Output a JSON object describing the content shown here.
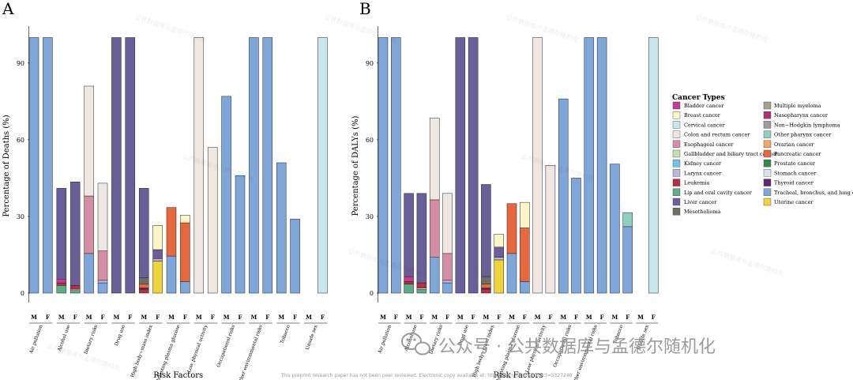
{
  "colors": {
    "Bladder cancer": "#c43c8c",
    "Breast cancer": "#fbf6c8",
    "Cervical cancer": "#c8e8ee",
    "Colon and rectum cancer": "#efe8e2",
    "Esophageal cancer": "#d68ea4",
    "Gallbladder and biliary tract cancer": "#c7dcb0",
    "Kidney cancer": "#73c4e8",
    "Larynx cancer": "#b9b6de",
    "Leukemia": "#b53040",
    "Lip and oral cavity cancer": "#5aae8a",
    "Liver cancer": "#6a5f98",
    "Mesothelioma": "#6e6e66",
    "Multiple myeloma": "#a2a28e",
    "Nasopharynx cancer": "#b0306e",
    "Non-Hodgkin lymphoma": "#a09a9a",
    "Other pharynx cancer": "#8ed0c0",
    "Ovarian cancer": "#f0a860",
    "Pancreatic cancer": "#e8683e",
    "Prostate cancer": "#2e8a52",
    "Stomach cancer": "#d4e6ea",
    "Thyroid cancer": "#5a2a78",
    "Tracheal, bronchus, and lung cancer": "#7ea6d8",
    "Uterine cancer": "#f2d43a"
  },
  "legend": {
    "title": "Cancer Types",
    "col1": [
      "Bladder cancer",
      "Breast cancer",
      "Cervical cancer",
      "Colon and rectum cancer",
      "Esophageal cancer",
      "Gallbladder and biliary tract cancer",
      "Kidney cancer",
      "Larynx cancer",
      "Leukemia",
      "Lip and oral cavity cancer",
      "Liver cancer",
      "Mesothelioma"
    ],
    "col2": [
      "Multiple myeloma",
      "Nasopharynx cancer",
      "Non−Hodgkin lymphoma",
      "Other pharynx cancer",
      "Ovarian cancer",
      "Pancreatic cancer",
      "Prostate cancer",
      "Stomach cancer",
      "Thyroid cancer",
      "Tracheal, bronchus, and lung cancer",
      "Uterine cancer"
    ],
    "col2_keys": [
      "Multiple myeloma",
      "Nasopharynx cancer",
      "Non-Hodgkin lymphoma",
      "Other pharynx cancer",
      "Ovarian cancer",
      "Pancreatic cancer",
      "Prostate cancer",
      "Stomach cancer",
      "Thyroid cancer",
      "Tracheal, bronchus, and lung cancer",
      "Uterine cancer"
    ]
  },
  "footnote": "This preprint research paper has not been peer reviewed. Electronic copy available at: https://ssrn.com/abstract=5327240",
  "watermark": {
    "main": "公众号 · 公共数据库与孟德尔随机化",
    "small": "公共数据库与孟德尔随机化"
  },
  "chart_data": [
    {
      "panel": "A",
      "type": "bar",
      "stacked": true,
      "ylabel": "Percentage of Deaths (%)",
      "xlabel": "Risk Factors",
      "ylim": [
        0,
        100
      ],
      "yticks": [
        0,
        30,
        60,
        90
      ],
      "groups": [
        "Air pollution",
        "Alcohol use",
        "Dietary risks",
        "Drug use",
        "High body−mass index",
        "High fasting plasma glucose",
        "Low physical activity",
        "Occupational risks",
        "Other environmental risks",
        "Tobacco",
        "Unsafe sex"
      ],
      "sexes": [
        "M",
        "F"
      ],
      "bars": [
        {
          "group": "Air pollution",
          "sex": "M",
          "stack": [
            [
              "Tracheal, bronchus, and lung cancer",
              100
            ]
          ]
        },
        {
          "group": "Air pollution",
          "sex": "F",
          "stack": [
            [
              "Tracheal, bronchus, and lung cancer",
              100
            ]
          ]
        },
        {
          "group": "Alcohol use",
          "sex": "M",
          "stack": [
            [
              "Lip and oral cavity cancer",
              3
            ],
            [
              "Leukemia",
              1
            ],
            [
              "Bladder cancer",
              1.5
            ],
            [
              "Liver cancer",
              35.5
            ]
          ]
        },
        {
          "group": "Alcohol use",
          "sex": "F",
          "stack": [
            [
              "Lip and oral cavity cancer",
              1
            ],
            [
              "Colon and rectum cancer",
              0.5
            ],
            [
              "Leukemia",
              1.5
            ],
            [
              "Liver cancer",
              40.5
            ]
          ]
        },
        {
          "group": "Dietary risks",
          "sex": "M",
          "stack": [
            [
              "Tracheal, bronchus, and lung cancer",
              15.5
            ],
            [
              "Esophageal cancer",
              22.5
            ],
            [
              "Colon and rectum cancer",
              43
            ]
          ]
        },
        {
          "group": "Dietary risks",
          "sex": "F",
          "stack": [
            [
              "Tracheal, bronchus, and lung cancer",
              4
            ],
            [
              "Larynx cancer",
              1
            ],
            [
              "Esophageal cancer",
              11.5
            ],
            [
              "Colon and rectum cancer",
              26.5
            ]
          ]
        },
        {
          "group": "Drug use",
          "sex": "M",
          "stack": [
            [
              "Liver cancer",
              100
            ]
          ]
        },
        {
          "group": "Drug use",
          "sex": "F",
          "stack": [
            [
              "Liver cancer",
              100
            ]
          ]
        },
        {
          "group": "High body−mass index",
          "sex": "M",
          "stack": [
            [
              "Leukemia",
              1.5
            ],
            [
              "Thyroid cancer",
              0.5
            ],
            [
              "Pancreatic cancer",
              1.5
            ],
            [
              "Mesothelioma",
              2.5
            ],
            [
              "Liver cancer",
              35
            ]
          ]
        },
        {
          "group": "High body−mass index",
          "sex": "F",
          "stack": [
            [
              "Uterine cancer",
              12.5
            ],
            [
              "Larynx cancer",
              1
            ],
            [
              "Liver cancer",
              3.5
            ],
            [
              "Breast cancer",
              9.5
            ]
          ]
        },
        {
          "group": "High fasting plasma glucose",
          "sex": "M",
          "stack": [
            [
              "Tracheal, bronchus, and lung cancer",
              14.5
            ],
            [
              "Pancreatic cancer",
              19
            ]
          ]
        },
        {
          "group": "High fasting plasma glucose",
          "sex": "F",
          "stack": [
            [
              "Tracheal, bronchus, and lung cancer",
              4.5
            ],
            [
              "Pancreatic cancer",
              23
            ],
            [
              "Breast cancer",
              3
            ]
          ]
        },
        {
          "group": "Low physical activity",
          "sex": "M",
          "stack": [
            [
              "Colon and rectum cancer",
              100
            ]
          ]
        },
        {
          "group": "Low physical activity",
          "sex": "F",
          "stack": [
            [
              "Colon and rectum cancer",
              57
            ]
          ]
        },
        {
          "group": "Occupational risks",
          "sex": "M",
          "stack": [
            [
              "Tracheal, bronchus, and lung cancer",
              77
            ]
          ]
        },
        {
          "group": "Occupational risks",
          "sex": "F",
          "stack": [
            [
              "Tracheal, bronchus, and lung cancer",
              46
            ]
          ]
        },
        {
          "group": "Other environmental risks",
          "sex": "M",
          "stack": [
            [
              "Tracheal, bronchus, and lung cancer",
              100
            ]
          ]
        },
        {
          "group": "Other environmental risks",
          "sex": "F",
          "stack": [
            [
              "Tracheal, bronchus, and lung cancer",
              100
            ]
          ]
        },
        {
          "group": "Tobacco",
          "sex": "M",
          "stack": [
            [
              "Tracheal, bronchus, and lung cancer",
              51
            ]
          ]
        },
        {
          "group": "Tobacco",
          "sex": "F",
          "stack": [
            [
              "Tracheal, bronchus, and lung cancer",
              29
            ]
          ]
        },
        {
          "group": "Unsafe sex",
          "sex": "M",
          "stack": []
        },
        {
          "group": "Unsafe sex",
          "sex": "F",
          "stack": [
            [
              "Cervical cancer",
              100
            ]
          ]
        }
      ]
    },
    {
      "panel": "B",
      "type": "bar",
      "stacked": true,
      "ylabel": "Percentage of DALYs (%)",
      "xlabel": "Risk Factors",
      "ylim": [
        0,
        100
      ],
      "yticks": [
        0,
        30,
        60,
        90
      ],
      "groups": [
        "Air pollution",
        "Alcohol use",
        "Dietary risks",
        "Drug use",
        "High body−mass index",
        "High fasting plasma glucose",
        "Low physical activity",
        "Occupational risks",
        "Other environmental risks",
        "Tobacco",
        "Unsafe sex"
      ],
      "sexes": [
        "M",
        "F"
      ],
      "bars": [
        {
          "group": "Air pollution",
          "sex": "M",
          "stack": [
            [
              "Tracheal, bronchus, and lung cancer",
              100
            ]
          ]
        },
        {
          "group": "Air pollution",
          "sex": "F",
          "stack": [
            [
              "Tracheal, bronchus, and lung cancer",
              100
            ]
          ]
        },
        {
          "group": "Alcohol use",
          "sex": "M",
          "stack": [
            [
              "Lip and oral cavity cancer",
              3.5
            ],
            [
              "Leukemia",
              1
            ],
            [
              "Bladder cancer",
              2
            ],
            [
              "Liver cancer",
              32.5
            ]
          ]
        },
        {
          "group": "Alcohol use",
          "sex": "F",
          "stack": [
            [
              "Lip and oral cavity cancer",
              1.5
            ],
            [
              "Colon and rectum cancer",
              0.5
            ],
            [
              "Leukemia",
              2
            ],
            [
              "Liver cancer",
              35
            ]
          ]
        },
        {
          "group": "Dietary risks",
          "sex": "M",
          "stack": [
            [
              "Tracheal, bronchus, and lung cancer",
              14
            ],
            [
              "Esophageal cancer",
              22.5
            ],
            [
              "Colon and rectum cancer",
              32
            ]
          ]
        },
        {
          "group": "Dietary risks",
          "sex": "F",
          "stack": [
            [
              "Tracheal, bronchus, and lung cancer",
              4
            ],
            [
              "Larynx cancer",
              1
            ],
            [
              "Esophageal cancer",
              10.5
            ],
            [
              "Colon and rectum cancer",
              23.5
            ]
          ]
        },
        {
          "group": "Drug use",
          "sex": "M",
          "stack": [
            [
              "Liver cancer",
              100
            ]
          ]
        },
        {
          "group": "Drug use",
          "sex": "F",
          "stack": [
            [
              "Liver cancer",
              100
            ]
          ]
        },
        {
          "group": "High body−mass index",
          "sex": "M",
          "stack": [
            [
              "Leukemia",
              1.5
            ],
            [
              "Thyroid cancer",
              0.5
            ],
            [
              "Pancreatic cancer",
              1.5
            ],
            [
              "Mesothelioma",
              3
            ],
            [
              "Liver cancer",
              36
            ]
          ]
        },
        {
          "group": "High body−mass index",
          "sex": "F",
          "stack": [
            [
              "Uterine cancer",
              13
            ],
            [
              "Larynx cancer",
              1
            ],
            [
              "Liver cancer",
              4
            ],
            [
              "Breast cancer",
              5
            ]
          ]
        },
        {
          "group": "High fasting plasma glucose",
          "sex": "M",
          "stack": [
            [
              "Tracheal, bronchus, and lung cancer",
              15.5
            ],
            [
              "Pancreatic cancer",
              19.5
            ]
          ]
        },
        {
          "group": "High fasting plasma glucose",
          "sex": "F",
          "stack": [
            [
              "Tracheal, bronchus, and lung cancer",
              4.5
            ],
            [
              "Pancreatic cancer",
              21
            ],
            [
              "Breast cancer",
              10
            ]
          ]
        },
        {
          "group": "Low physical activity",
          "sex": "M",
          "stack": [
            [
              "Colon and rectum cancer",
              100
            ]
          ]
        },
        {
          "group": "Low physical activity",
          "sex": "F",
          "stack": [
            [
              "Colon and rectum cancer",
              50
            ]
          ]
        },
        {
          "group": "Occupational risks",
          "sex": "M",
          "stack": [
            [
              "Tracheal, bronchus, and lung cancer",
              76
            ]
          ]
        },
        {
          "group": "Occupational risks",
          "sex": "F",
          "stack": [
            [
              "Tracheal, bronchus, and lung cancer",
              45
            ]
          ]
        },
        {
          "group": "Other environmental risks",
          "sex": "M",
          "stack": [
            [
              "Tracheal, bronchus, and lung cancer",
              100
            ]
          ]
        },
        {
          "group": "Other environmental risks",
          "sex": "F",
          "stack": [
            [
              "Tracheal, bronchus, and lung cancer",
              100
            ]
          ]
        },
        {
          "group": "Tobacco",
          "sex": "M",
          "stack": [
            [
              "Tracheal, bronchus, and lung cancer",
              50.5
            ]
          ]
        },
        {
          "group": "Tobacco",
          "sex": "F",
          "stack": [
            [
              "Tracheal, bronchus, and lung cancer",
              26
            ],
            [
              "Other pharynx cancer",
              5.5
            ]
          ]
        },
        {
          "group": "Unsafe sex",
          "sex": "M",
          "stack": []
        },
        {
          "group": "Unsafe sex",
          "sex": "F",
          "stack": [
            [
              "Cervical cancer",
              100
            ]
          ]
        }
      ]
    }
  ]
}
